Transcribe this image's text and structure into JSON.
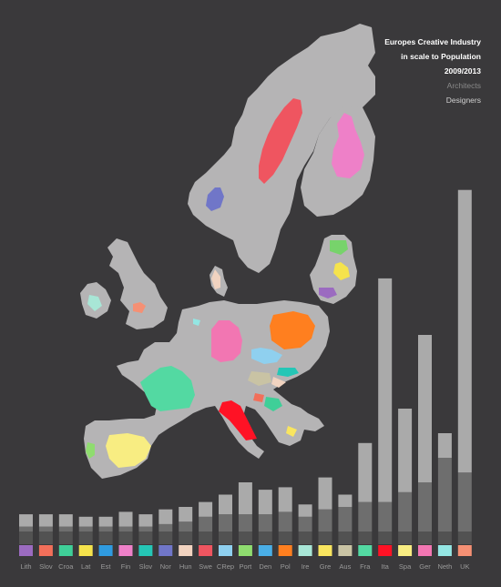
{
  "title_lines": [
    "Europes Creative Industry",
    "in scale to Population",
    "2009/2013"
  ],
  "legend": {
    "architects": "Architects",
    "designers": "Designers"
  },
  "colors": {
    "background": "#3a393b",
    "land": "#b5b4b5",
    "architects": "#aaaaaa",
    "designers": "#6e6e6e",
    "base": "#525252",
    "title": "#ffffff"
  },
  "chart_data": {
    "type": "bar",
    "stacked": true,
    "categories": [
      "Lith",
      "Slov",
      "Croa",
      "Lat",
      "Est",
      "Fin",
      "Slov",
      "Nor",
      "Hun",
      "Swe",
      "CRep",
      "Port",
      "Den",
      "Pol",
      "Ire",
      "Gre",
      "Aus",
      "Fra",
      "Ita",
      "Spa",
      "Ger",
      "Neth",
      "UK"
    ],
    "country_colors": [
      "#9b6bc0",
      "#f26f5a",
      "#3fcf98",
      "#f5e34c",
      "#2f9be0",
      "#ee80c8",
      "#25c6b6",
      "#7076c8",
      "#f1d3c0",
      "#ef5560",
      "#8fd0ef",
      "#8fdc6f",
      "#4aaee6",
      "#ff7f1f",
      "#a8e6d6",
      "#f9e55f",
      "#c9c3a4",
      "#53d9a2",
      "#ff1225",
      "#f8ed82",
      "#f276b2",
      "#94e6e3",
      "#f59074"
    ],
    "series": [
      {
        "name": "Designers",
        "values": [
          2,
          2,
          2,
          2,
          2,
          2,
          2,
          3,
          4,
          6,
          7,
          7,
          7,
          8,
          6,
          9,
          10,
          12,
          12,
          16,
          20,
          30,
          24
        ]
      },
      {
        "name": "Architects",
        "values": [
          5,
          5,
          5,
          4,
          4,
          6,
          5,
          6,
          6,
          6,
          8,
          13,
          10,
          10,
          5,
          13,
          5,
          24,
          91,
          34,
          60,
          10,
          115
        ]
      }
    ],
    "ylim": [
      0,
      140
    ]
  }
}
